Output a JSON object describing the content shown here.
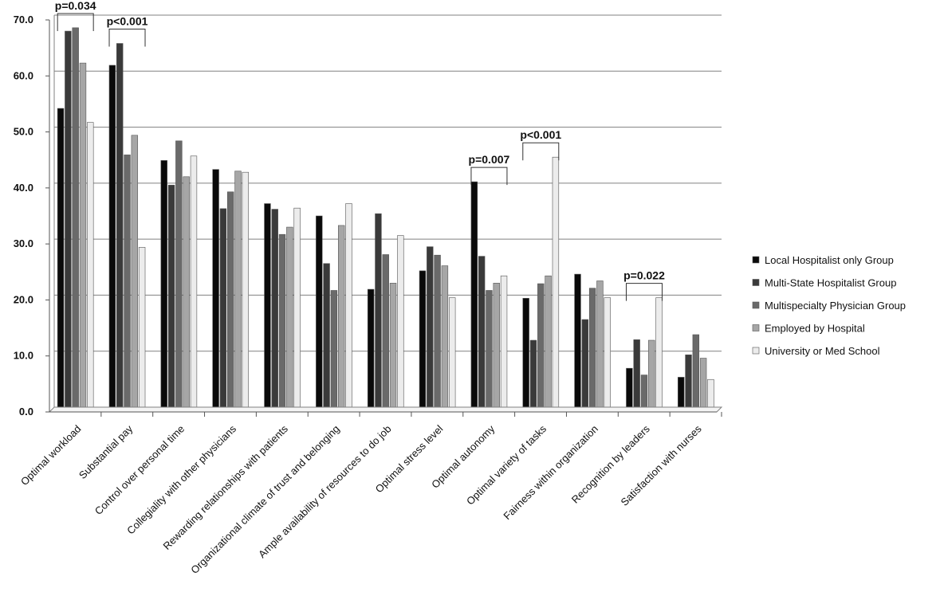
{
  "chart_data": {
    "type": "bar",
    "title": "",
    "xlabel": "",
    "ylabel": "",
    "ylim": [
      0,
      70
    ],
    "yticks": [
      "0.0",
      "10.0",
      "20.0",
      "30.0",
      "40.0",
      "50.0",
      "60.0",
      "70.0"
    ],
    "grid": true,
    "legend_position": "right",
    "categories": [
      "Optimal workload",
      "Substantial  pay",
      "Control over personal time",
      "Collegiality with other physicians",
      "Rewarding relationships with patients",
      "Organizational climate of trust and belonging",
      "Ample availability of resources to do job",
      "Optimal stress level",
      "Optimal autonomy",
      "Optimal variety of tasks",
      "Fairness within organization",
      "Recognition by leaders",
      "Satisfaction with nurses"
    ],
    "series": [
      {
        "name": "Local Hospitalist  only Group",
        "color": "#0a0a0a",
        "values": [
          54.2,
          61.9,
          44.9,
          43.3,
          37.2,
          35.0,
          21.9,
          25.2,
          41.1,
          20.3,
          24.6,
          7.8,
          6.2
        ]
      },
      {
        "name": "Multi-State  Hospitalist Group",
        "color": "#3a3a3a",
        "values": [
          68.0,
          65.8,
          40.5,
          36.3,
          36.2,
          26.5,
          35.4,
          29.5,
          27.8,
          12.8,
          16.5,
          12.9,
          10.2
        ]
      },
      {
        "name": "Multispecialty  Physician Group",
        "color": "#6a6a6a",
        "values": [
          68.6,
          45.9,
          48.4,
          39.3,
          31.7,
          21.7,
          28.1,
          28.0,
          21.7,
          22.9,
          22.1,
          6.6,
          13.8
        ]
      },
      {
        "name": "Employed by Hospital",
        "color": "#a6a6a6",
        "values": [
          62.3,
          49.4,
          42.0,
          43.0,
          33.0,
          33.3,
          23.0,
          26.1,
          23.0,
          24.3,
          23.4,
          12.8,
          9.6
        ]
      },
      {
        "name": "University or Med School",
        "color": "#ececec",
        "values": [
          51.7,
          29.4,
          45.7,
          42.8,
          36.4,
          37.2,
          31.5,
          20.4,
          24.3,
          45.5,
          20.4,
          20.4,
          5.8
        ]
      }
    ],
    "annotations": [
      {
        "text": "p=0.034",
        "category_index": 0
      },
      {
        "text": "p<0.001",
        "category_index": 1
      },
      {
        "text": "p=0.007",
        "category_index": 8
      },
      {
        "text": "p<0.001",
        "category_index": 9
      },
      {
        "text": "p=0.022",
        "category_index": 11
      }
    ]
  }
}
